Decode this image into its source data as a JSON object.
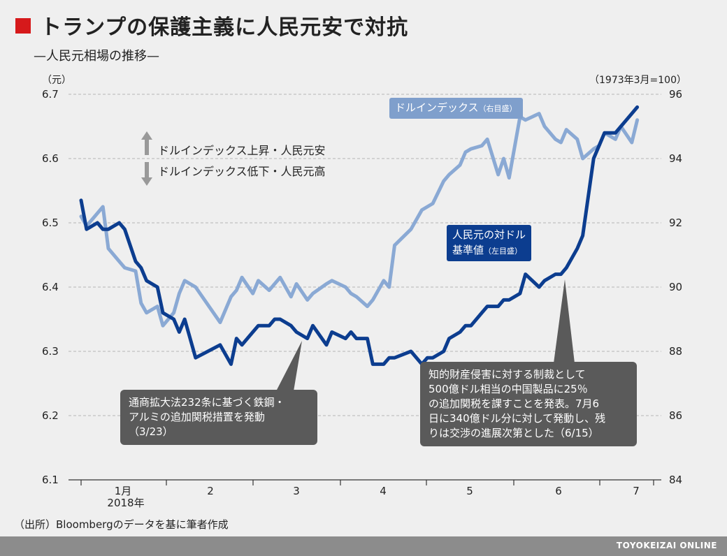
{
  "header": {
    "title": "トランプの保護主義に人民元安で対抗",
    "subtitle": "—人民元相場の推移—",
    "unit_left": "（元）",
    "unit_right": "（1973年3月=100）"
  },
  "legend": {
    "up": "ドルインデックス上昇・人民元安",
    "down": "ドルインデックス低下・人民元高"
  },
  "labels": {
    "dollar_index": "ドルインデックス",
    "dollar_index_axis": "（右目盛）",
    "yuan_line1": "人民元の対ドル",
    "yuan_line2": "基準値",
    "yuan_axis": "（左目盛）"
  },
  "callouts": {
    "steel": [
      "通商拡大法232条に基づく鉄鋼・",
      "アルミの追加関税措置を発動",
      "（3/23）"
    ],
    "ip": [
      "知的財産侵害に対する制裁として",
      "500億ドル相当の中国製品に25％",
      "の追加関税を課すことを発表。7月6",
      "日に340億ドル分に対して発動し、残",
      "りは交渉の進展次第とした（6/15）"
    ]
  },
  "source": "（出所）Bloombergのデータを基に筆者作成",
  "footer": "TOYOKEIZAI ONLINE",
  "colors": {
    "yuan": "#0c3d8f",
    "dollar": "#8aa9d4",
    "title_mark": "#d6191b",
    "callout": "#5a5a5a"
  },
  "chart_data": {
    "type": "line",
    "x_tick_labels": [
      "1月",
      "2",
      "3",
      "4",
      "5",
      "6",
      "7"
    ],
    "x_year_label": "2018年",
    "y_left": {
      "ylim": [
        6.1,
        6.7
      ],
      "ticks": [
        "6.1",
        "6.2",
        "6.3",
        "6.4",
        "6.5",
        "6.6",
        "6.7"
      ]
    },
    "y_right": {
      "ylim": [
        84,
        96
      ],
      "ticks": [
        "84",
        "86",
        "88",
        "90",
        "92",
        "94",
        "96"
      ]
    },
    "grid": true,
    "series": [
      {
        "name": "人民元の対ドル基準値",
        "axis": "left",
        "x": [
          "2018-01-02",
          "2018-01-04",
          "2018-01-08",
          "2018-01-10",
          "2018-01-12",
          "2018-01-16",
          "2018-01-18",
          "2018-01-22",
          "2018-01-24",
          "2018-01-26",
          "2018-01-30",
          "2018-02-01",
          "2018-02-05",
          "2018-02-07",
          "2018-02-09",
          "2018-02-13",
          "2018-02-22",
          "2018-02-26",
          "2018-02-28",
          "2018-03-02",
          "2018-03-06",
          "2018-03-08",
          "2018-03-12",
          "2018-03-14",
          "2018-03-16",
          "2018-03-20",
          "2018-03-22",
          "2018-03-26",
          "2018-03-28",
          "2018-04-02",
          "2018-04-04",
          "2018-04-09",
          "2018-04-11",
          "2018-04-13",
          "2018-04-17",
          "2018-04-19",
          "2018-04-23",
          "2018-04-25",
          "2018-04-27",
          "2018-05-03",
          "2018-05-07",
          "2018-05-09",
          "2018-05-11",
          "2018-05-15",
          "2018-05-17",
          "2018-05-21",
          "2018-05-23",
          "2018-05-25",
          "2018-05-29",
          "2018-05-31",
          "2018-06-04",
          "2018-06-06",
          "2018-06-08",
          "2018-06-12",
          "2018-06-14",
          "2018-06-19",
          "2018-06-21",
          "2018-06-25",
          "2018-06-27",
          "2018-06-29",
          "2018-07-03",
          "2018-07-05",
          "2018-07-09",
          "2018-07-11",
          "2018-07-13",
          "2018-07-17",
          "2018-07-19",
          "2018-07-23",
          "2018-07-25"
        ],
        "values": [
          6.535,
          6.49,
          6.5,
          6.49,
          6.49,
          6.5,
          6.49,
          6.44,
          6.43,
          6.41,
          6.4,
          6.36,
          6.35,
          6.33,
          6.35,
          6.29,
          6.31,
          6.28,
          6.32,
          6.31,
          6.33,
          6.34,
          6.34,
          6.35,
          6.35,
          6.34,
          6.33,
          6.32,
          6.34,
          6.31,
          6.33,
          6.32,
          6.33,
          6.32,
          6.32,
          6.28,
          6.28,
          6.29,
          6.29,
          6.3,
          6.28,
          6.29,
          6.29,
          6.3,
          6.32,
          6.33,
          6.34,
          6.34,
          6.36,
          6.37,
          6.37,
          6.38,
          6.38,
          6.39,
          6.42,
          6.4,
          6.41,
          6.42,
          6.42,
          6.43,
          6.46,
          6.48,
          6.6,
          6.62,
          6.64,
          6.64,
          6.65,
          6.67,
          6.68
        ]
      },
      {
        "name": "ドルインデックス",
        "axis": "right",
        "x": [
          "2018-01-02",
          "2018-01-04",
          "2018-01-08",
          "2018-01-10",
          "2018-01-12",
          "2018-01-16",
          "2018-01-18",
          "2018-01-22",
          "2018-01-24",
          "2018-01-26",
          "2018-01-30",
          "2018-02-01",
          "2018-02-05",
          "2018-02-07",
          "2018-02-09",
          "2018-02-13",
          "2018-02-22",
          "2018-02-26",
          "2018-02-28",
          "2018-03-02",
          "2018-03-06",
          "2018-03-08",
          "2018-03-12",
          "2018-03-14",
          "2018-03-16",
          "2018-03-20",
          "2018-03-22",
          "2018-03-26",
          "2018-03-28",
          "2018-04-02",
          "2018-04-04",
          "2018-04-09",
          "2018-04-11",
          "2018-04-13",
          "2018-04-17",
          "2018-04-19",
          "2018-04-23",
          "2018-04-25",
          "2018-04-27",
          "2018-05-03",
          "2018-05-07",
          "2018-05-09",
          "2018-05-11",
          "2018-05-15",
          "2018-05-17",
          "2018-05-21",
          "2018-05-23",
          "2018-05-25",
          "2018-05-29",
          "2018-05-31",
          "2018-06-04",
          "2018-06-06",
          "2018-06-08",
          "2018-06-12",
          "2018-06-14",
          "2018-06-19",
          "2018-06-21",
          "2018-06-25",
          "2018-06-27",
          "2018-06-29",
          "2018-07-03",
          "2018-07-05",
          "2018-07-09",
          "2018-07-11",
          "2018-07-13",
          "2018-07-17",
          "2018-07-19",
          "2018-07-23",
          "2018-07-25"
        ],
        "values": [
          92.2,
          91.9,
          92.3,
          92.5,
          91.2,
          90.8,
          90.6,
          90.5,
          89.5,
          89.2,
          89.4,
          88.8,
          89.2,
          89.8,
          90.2,
          90.0,
          88.9,
          89.7,
          89.9,
          90.3,
          89.8,
          90.2,
          89.9,
          90.1,
          90.3,
          89.7,
          90.1,
          89.6,
          89.8,
          90.1,
          90.2,
          90.0,
          89.8,
          89.7,
          89.4,
          89.6,
          90.2,
          90.0,
          91.3,
          91.8,
          92.4,
          92.5,
          92.6,
          93.3,
          93.5,
          93.8,
          94.2,
          94.3,
          94.4,
          94.6,
          93.5,
          94.0,
          93.4,
          95.3,
          95.2,
          95.4,
          95.0,
          94.6,
          94.5,
          94.9,
          94.6,
          94.0,
          94.3,
          94.4,
          94.8,
          94.6,
          95.0,
          94.5,
          95.2
        ]
      }
    ]
  }
}
